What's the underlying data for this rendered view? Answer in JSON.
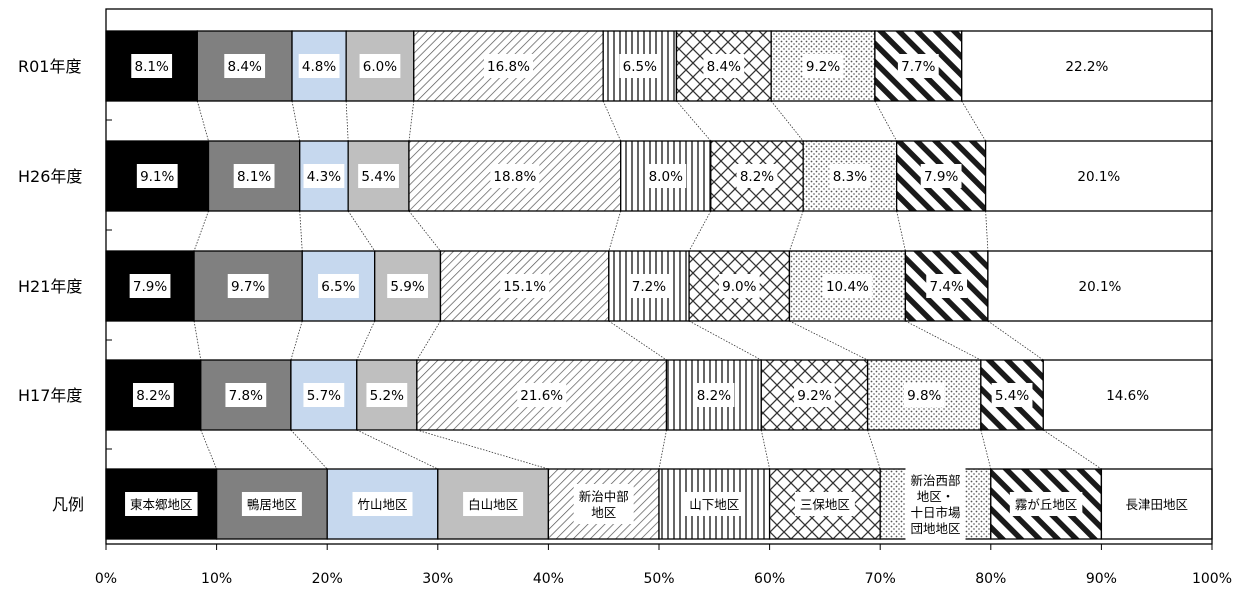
{
  "chart_data": {
    "type": "bar",
    "orientation": "horizontal",
    "stacked": "100%",
    "categories": [
      "R01年度",
      "H26年度",
      "H21年度",
      "H17年度"
    ],
    "legend_row_label": "凡例",
    "series": [
      {
        "name": "東本郷地区",
        "legend_lines": [
          "東本郷地区"
        ],
        "fill": "#000000",
        "pattern": "solid",
        "values": [
          8.1,
          9.1,
          7.9,
          8.2
        ],
        "labels": [
          "8.1%",
          "9.1%",
          "7.9%",
          "8.2%"
        ]
      },
      {
        "name": "鴨居地区",
        "legend_lines": [
          "鴨居地区"
        ],
        "fill": "#808080",
        "pattern": "solid",
        "values": [
          8.4,
          8.1,
          9.7,
          7.8
        ],
        "labels": [
          "8.4%",
          "8.1%",
          "9.7%",
          "7.8%"
        ]
      },
      {
        "name": "竹山地区",
        "legend_lines": [
          "竹山地区"
        ],
        "fill": "#c6d8ee",
        "pattern": "solid",
        "values": [
          4.8,
          4.3,
          6.5,
          5.7
        ],
        "labels": [
          "4.8%",
          "4.3%",
          "6.5%",
          "5.7%"
        ]
      },
      {
        "name": "白山地区",
        "legend_lines": [
          "白山地区"
        ],
        "fill": "#bfbfbf",
        "pattern": "solid",
        "values": [
          6.0,
          5.4,
          5.9,
          5.2
        ],
        "labels": [
          "6.0%",
          "5.4%",
          "5.9%",
          "5.2%"
        ]
      },
      {
        "name": "新治中部地区",
        "legend_lines": [
          "新治中部",
          "地区"
        ],
        "fill": "#ffffff",
        "pattern": "diagonal-thin",
        "values": [
          16.8,
          18.8,
          15.1,
          21.6
        ],
        "labels": [
          "16.8%",
          "18.8%",
          "15.1%",
          "21.6%"
        ]
      },
      {
        "name": "山下地区",
        "legend_lines": [
          "山下地区"
        ],
        "fill": "#ffffff",
        "pattern": "vertical",
        "values": [
          6.5,
          8.0,
          7.2,
          8.2
        ],
        "labels": [
          "6.5%",
          "8.0%",
          "7.2%",
          "8.2%"
        ]
      },
      {
        "name": "三保地区",
        "legend_lines": [
          "三保地区"
        ],
        "fill": "#ffffff",
        "pattern": "crosshatch",
        "values": [
          8.4,
          8.2,
          9.0,
          9.2
        ],
        "labels": [
          "8.4%",
          "8.2%",
          "9.0%",
          "9.2%"
        ]
      },
      {
        "name": "新治西部地区・十日市場団地地区",
        "legend_lines": [
          "新治西部",
          "地区・",
          "十日市場",
          "団地地区"
        ],
        "fill": "#ffffff",
        "pattern": "dots",
        "values": [
          9.2,
          8.3,
          10.4,
          9.8
        ],
        "labels": [
          "9.2%",
          "8.3%",
          "10.4%",
          "9.8%"
        ]
      },
      {
        "name": "霧が丘地区",
        "legend_lines": [
          "霧が丘地区"
        ],
        "fill": "#ffffff",
        "pattern": "diagonal-thick",
        "values": [
          7.7,
          7.9,
          7.4,
          5.4
        ],
        "labels": [
          "7.7%",
          "7.9%",
          "7.4%",
          "5.4%"
        ]
      },
      {
        "name": "長津田地区",
        "legend_lines": [
          "長津田地区"
        ],
        "fill": "#ffffff",
        "pattern": "solid",
        "values": [
          22.2,
          20.1,
          20.1,
          14.6
        ],
        "labels": [
          "22.2%",
          "20.1%",
          "20.1%",
          "14.6%"
        ]
      }
    ],
    "xlim": [
      0,
      100
    ],
    "x_tick_labels": [
      "0%",
      "10%",
      "20%",
      "30%",
      "40%",
      "50%",
      "60%",
      "70%",
      "80%",
      "90%",
      "100%"
    ],
    "connector_lines": "dotted",
    "grid": false,
    "legend_placement": "bottom-row"
  }
}
